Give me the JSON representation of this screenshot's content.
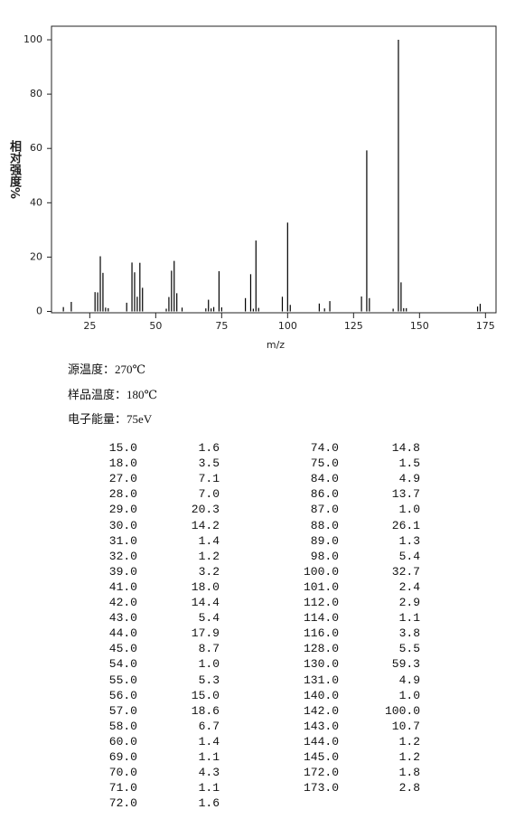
{
  "chart_data": {
    "type": "stick",
    "y_label": "相对强度%",
    "x_label": "m/z",
    "x": [
      15,
      18,
      27,
      28,
      29,
      30,
      31,
      32,
      39,
      41,
      42,
      43,
      44,
      45,
      54,
      55,
      56,
      57,
      58,
      60,
      69,
      70,
      71,
      72,
      74,
      75,
      84,
      86,
      87,
      88,
      89,
      98,
      100,
      101,
      112,
      114,
      116,
      128,
      130,
      131,
      140,
      142,
      143,
      144,
      145,
      172,
      173
    ],
    "values": [
      1.6,
      3.5,
      7.1,
      7.0,
      20.3,
      14.2,
      1.4,
      1.2,
      3.2,
      18.0,
      14.4,
      5.4,
      17.9,
      8.7,
      1.0,
      5.3,
      15.0,
      18.6,
      6.7,
      1.4,
      1.1,
      4.3,
      1.1,
      1.6,
      14.8,
      1.5,
      4.9,
      13.7,
      1.0,
      26.1,
      1.3,
      5.4,
      32.7,
      2.4,
      2.9,
      1.1,
      3.8,
      5.5,
      59.3,
      4.9,
      1.0,
      100.0,
      10.7,
      1.2,
      1.2,
      1.8,
      2.8
    ],
    "color": "#000000",
    "xlim": [
      10.5,
      179
    ],
    "ylim": [
      -0.5,
      105
    ],
    "xticks": [
      25,
      50,
      75,
      100,
      125,
      150,
      175
    ],
    "yticks": [
      0,
      20,
      40,
      60,
      80,
      100
    ]
  },
  "info": [
    "源温度：270℃",
    "样品温度：180℃",
    "电子能量：75eV"
  ],
  "table": {
    "left": [
      [
        "15.0",
        "1.6"
      ],
      [
        "18.0",
        "3.5"
      ],
      [
        "27.0",
        "7.1"
      ],
      [
        "28.0",
        "7.0"
      ],
      [
        "29.0",
        "20.3"
      ],
      [
        "30.0",
        "14.2"
      ],
      [
        "31.0",
        "1.4"
      ],
      [
        "32.0",
        "1.2"
      ],
      [
        "39.0",
        "3.2"
      ],
      [
        "41.0",
        "18.0"
      ],
      [
        "42.0",
        "14.4"
      ],
      [
        "43.0",
        "5.4"
      ],
      [
        "44.0",
        "17.9"
      ],
      [
        "45.0",
        "8.7"
      ],
      [
        "54.0",
        "1.0"
      ],
      [
        "55.0",
        "5.3"
      ],
      [
        "56.0",
        "15.0"
      ],
      [
        "57.0",
        "18.6"
      ],
      [
        "58.0",
        "6.7"
      ],
      [
        "60.0",
        "1.4"
      ],
      [
        "69.0",
        "1.1"
      ],
      [
        "70.0",
        "4.3"
      ],
      [
        "71.0",
        "1.1"
      ],
      [
        "72.0",
        "1.6"
      ]
    ],
    "right": [
      [
        "74.0",
        "14.8"
      ],
      [
        "75.0",
        "1.5"
      ],
      [
        "84.0",
        "4.9"
      ],
      [
        "86.0",
        "13.7"
      ],
      [
        "87.0",
        "1.0"
      ],
      [
        "88.0",
        "26.1"
      ],
      [
        "89.0",
        "1.3"
      ],
      [
        "98.0",
        "5.4"
      ],
      [
        "100.0",
        "32.7"
      ],
      [
        "101.0",
        "2.4"
      ],
      [
        "112.0",
        "2.9"
      ],
      [
        "114.0",
        "1.1"
      ],
      [
        "116.0",
        "3.8"
      ],
      [
        "128.0",
        "5.5"
      ],
      [
        "130.0",
        "59.3"
      ],
      [
        "131.0",
        "4.9"
      ],
      [
        "140.0",
        "1.0"
      ],
      [
        "142.0",
        "100.0"
      ],
      [
        "143.0",
        "10.7"
      ],
      [
        "144.0",
        "1.2"
      ],
      [
        "145.0",
        "1.2"
      ],
      [
        "172.0",
        "1.8"
      ],
      [
        "173.0",
        "2.8"
      ]
    ]
  }
}
